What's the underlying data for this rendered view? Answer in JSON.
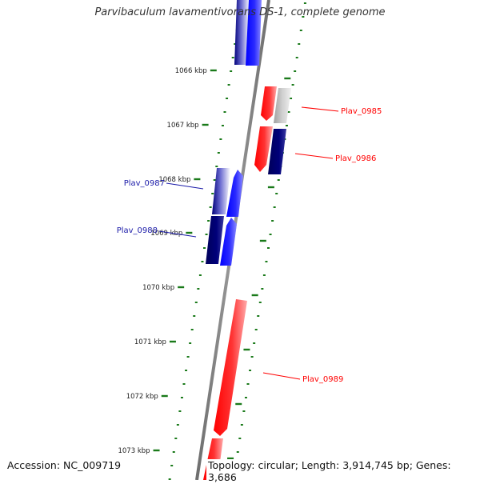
{
  "title": "Parvibaculum lavamentivorans DS-1, complete genome",
  "accession": "Accession: NC_009719",
  "summary": "Topology: circular; Length: 3,914,745 bp; Genes: 3,686",
  "colors": {
    "forward_strand": "#ff0000",
    "reverse_strand": "#0000ff",
    "dark_blue": "#00006e",
    "grey": "#aaaaaa",
    "tick": "#1a7a1a",
    "backbone": "#808080"
  },
  "ticks": [
    {
      "label": "1066 kbp"
    },
    {
      "label": "1067 kbp"
    },
    {
      "label": "1068 kbp"
    },
    {
      "label": "1069 kbp"
    },
    {
      "label": "1070 kbp"
    },
    {
      "label": "1071 kbp"
    },
    {
      "label": "1072 kbp"
    },
    {
      "label": "1073 kbp"
    }
  ],
  "gene_labels": [
    {
      "name": "Plav_0985",
      "strand": "forward"
    },
    {
      "name": "Plav_0986",
      "strand": "forward"
    },
    {
      "name": "Plav_0987",
      "strand": "reverse"
    },
    {
      "name": "Plav_0988",
      "strand": "reverse"
    },
    {
      "name": "Plav_0989",
      "strand": "forward"
    }
  ]
}
